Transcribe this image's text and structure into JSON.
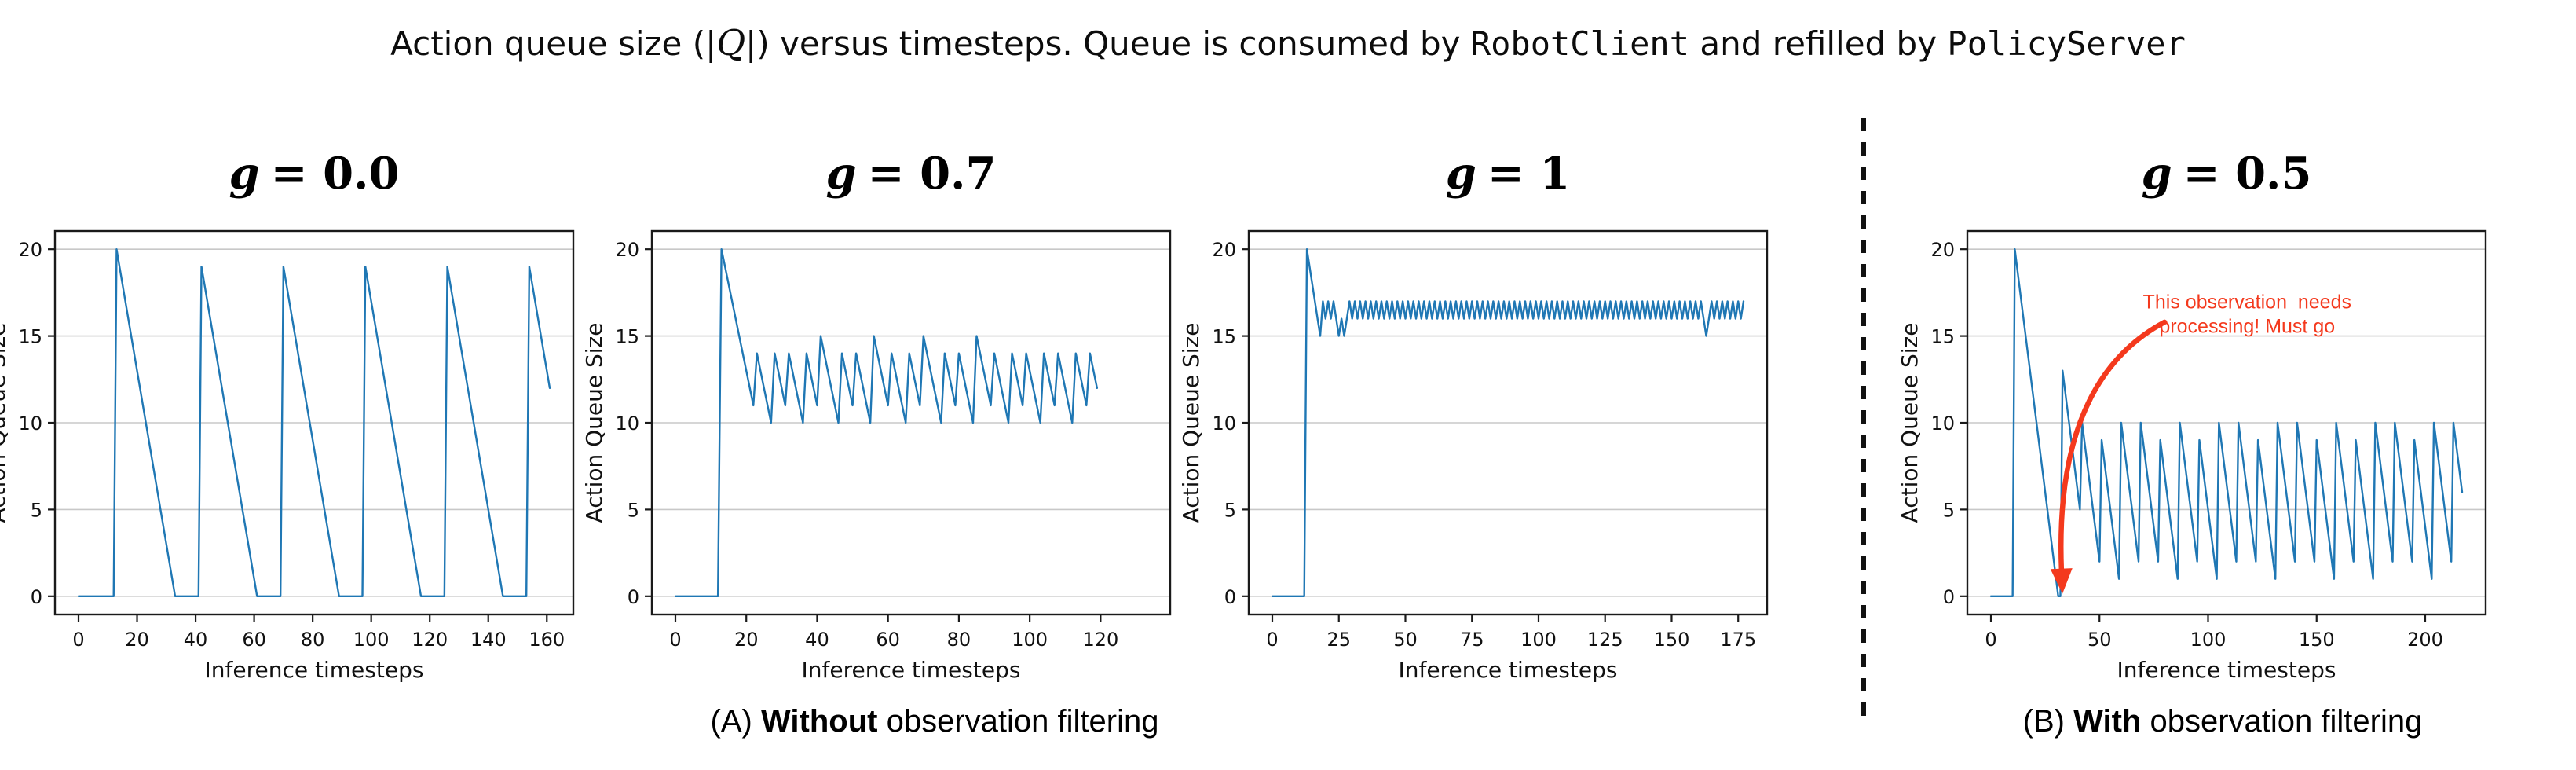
{
  "figure": {
    "title": {
      "part1": "Action queue size (|",
      "math_q": "Q",
      "part2": "|) versus timesteps. Queue is consumed by ",
      "code1": "RobotClient",
      "part3": " and refilled by ",
      "code2": "PolicyServer"
    },
    "captions": {
      "a": {
        "prefix": "(A)",
        "bold": "Without",
        "rest": "observation filtering"
      },
      "b": {
        "prefix": "(B)",
        "bold": "With",
        "rest": "observation filtering"
      }
    }
  },
  "style": {
    "line_color": "#1f77b4",
    "grid_color": "#c8c8c8",
    "spine_color": "#1a1a1a",
    "annotation_red": "#f4391d",
    "divider_color": "#111111"
  },
  "chart_data": [
    {
      "type": "line",
      "title_var": "g",
      "title_rest": "= 0.0",
      "xlabel": "Inference timesteps",
      "ylabel": "Action Queue Size",
      "xticks": [
        0,
        20,
        40,
        60,
        80,
        100,
        120,
        140,
        160
      ],
      "yticks": [
        0,
        5,
        10,
        15,
        20
      ],
      "xlim": [
        -8.05,
        169.05
      ],
      "ylim": [
        -1.05,
        21.05
      ],
      "grid": "horizontal",
      "legend": "none",
      "line_color": "#1f77b4",
      "x_start": 0,
      "values": [
        0,
        0,
        0,
        0,
        0,
        0,
        0,
        0,
        0,
        0,
        0,
        0,
        0,
        20,
        19,
        18,
        17,
        16,
        15,
        14,
        13,
        12,
        11,
        10,
        9,
        8,
        7,
        6,
        5,
        4,
        3,
        2,
        1,
        0,
        0,
        0,
        0,
        0,
        0,
        0,
        0,
        0,
        19,
        18,
        17,
        16,
        15,
        14,
        13,
        12,
        11,
        10,
        9,
        8,
        7,
        6,
        5,
        4,
        3,
        2,
        1,
        0,
        0,
        0,
        0,
        0,
        0,
        0,
        0,
        0,
        19,
        18,
        17,
        16,
        15,
        14,
        13,
        12,
        11,
        10,
        9,
        8,
        7,
        6,
        5,
        4,
        3,
        2,
        1,
        0,
        0,
        0,
        0,
        0,
        0,
        0,
        0,
        0,
        19,
        18,
        17,
        16,
        15,
        14,
        13,
        12,
        11,
        10,
        9,
        8,
        7,
        6,
        5,
        4,
        3,
        2,
        1,
        0,
        0,
        0,
        0,
        0,
        0,
        0,
        0,
        0,
        19,
        18,
        17,
        16,
        15,
        14,
        13,
        12,
        11,
        10,
        9,
        8,
        7,
        6,
        5,
        4,
        3,
        2,
        1,
        0,
        0,
        0,
        0,
        0,
        0,
        0,
        0,
        0,
        19,
        18,
        17,
        16,
        15,
        14,
        13,
        12
      ]
    },
    {
      "type": "line",
      "title_var": "g",
      "title_rest": "= 0.7",
      "xlabel": "Inference timesteps",
      "ylabel": "Action Queue Size",
      "xticks": [
        0,
        20,
        40,
        60,
        80,
        100,
        120
      ],
      "yticks": [
        0,
        5,
        10,
        15,
        20
      ],
      "xlim": [
        -6.65,
        139.65
      ],
      "ylim": [
        -1.05,
        21.05
      ],
      "grid": "horizontal",
      "legend": "none",
      "line_color": "#1f77b4",
      "x_start": 0,
      "values": [
        0,
        0,
        0,
        0,
        0,
        0,
        0,
        0,
        0,
        0,
        0,
        0,
        0,
        20,
        19,
        18,
        17,
        16,
        15,
        14,
        13,
        12,
        11,
        14,
        13,
        12,
        11,
        10,
        14,
        13,
        12,
        11,
        14,
        13,
        12,
        11,
        10,
        14,
        13,
        12,
        11,
        15,
        14,
        13,
        12,
        11,
        10,
        14,
        13,
        12,
        11,
        14,
        13,
        12,
        11,
        10,
        15,
        14,
        13,
        12,
        11,
        14,
        13,
        12,
        11,
        10,
        14,
        13,
        12,
        11,
        15,
        14,
        13,
        12,
        11,
        10,
        14,
        13,
        12,
        11,
        14,
        13,
        12,
        11,
        10,
        15,
        14,
        13,
        12,
        11,
        14,
        13,
        12,
        11,
        10,
        14,
        13,
        12,
        11,
        14,
        13,
        12,
        11,
        10,
        14,
        13,
        12,
        11,
        14,
        13,
        12,
        11,
        10,
        14,
        13,
        12,
        11,
        14,
        13,
        12
      ]
    },
    {
      "type": "line",
      "title_var": "g",
      "title_rest": "= 1",
      "xlabel": "Inference timesteps",
      "ylabel": "Action Queue Size",
      "xticks": [
        0,
        25,
        50,
        75,
        100,
        125,
        150,
        175
      ],
      "yticks": [
        0,
        5,
        10,
        15,
        20
      ],
      "xlim": [
        -8.85,
        185.85
      ],
      "ylim": [
        -1.05,
        21.05
      ],
      "grid": "horizontal",
      "legend": "none",
      "line_color": "#1f77b4",
      "x_start": 0,
      "values": [
        0,
        0,
        0,
        0,
        0,
        0,
        0,
        0,
        0,
        0,
        0,
        0,
        0,
        20,
        19,
        18,
        17,
        16,
        15,
        17,
        16,
        17,
        16,
        17,
        16,
        15,
        16,
        15,
        16,
        17,
        16,
        17,
        16,
        17,
        16,
        17,
        16,
        17,
        16,
        17,
        16,
        17,
        16,
        17,
        16,
        17,
        16,
        17,
        16,
        17,
        16,
        17,
        16,
        17,
        16,
        17,
        16,
        17,
        16,
        17,
        16,
        17,
        16,
        17,
        16,
        17,
        16,
        17,
        16,
        17,
        16,
        17,
        16,
        17,
        16,
        17,
        16,
        17,
        16,
        17,
        16,
        17,
        16,
        17,
        16,
        17,
        16,
        17,
        16,
        17,
        16,
        17,
        16,
        17,
        16,
        17,
        16,
        17,
        16,
        17,
        16,
        17,
        16,
        17,
        16,
        17,
        16,
        17,
        16,
        17,
        16,
        17,
        16,
        17,
        16,
        17,
        16,
        17,
        16,
        17,
        16,
        17,
        16,
        17,
        16,
        17,
        16,
        17,
        16,
        17,
        16,
        17,
        16,
        17,
        16,
        17,
        16,
        17,
        16,
        17,
        16,
        17,
        16,
        17,
        16,
        17,
        16,
        17,
        16,
        17,
        16,
        17,
        16,
        17,
        16,
        17,
        16,
        17,
        16,
        17,
        16,
        17,
        16,
        15,
        16,
        17,
        16,
        17,
        16,
        17,
        16,
        17,
        16,
        17,
        16,
        17,
        16,
        17
      ]
    },
    {
      "type": "line",
      "title_var": "g",
      "title_rest": "= 0.5",
      "xlabel": "Inference timesteps",
      "ylabel": "Action Queue Size",
      "xticks": [
        0,
        50,
        100,
        150,
        200
      ],
      "yticks": [
        0,
        5,
        10,
        15,
        20
      ],
      "xlim": [
        -10.85,
        227.85
      ],
      "ylim": [
        -1.05,
        21.05
      ],
      "grid": "horizontal",
      "legend": "none",
      "line_color": "#1f77b4",
      "x_start": 0,
      "values": [
        0,
        0,
        0,
        0,
        0,
        0,
        0,
        0,
        0,
        0,
        0,
        20,
        19,
        18,
        17,
        16,
        15,
        14,
        13,
        12,
        11,
        10,
        9,
        8,
        7,
        6,
        5,
        4,
        3,
        2,
        1,
        0,
        0,
        13,
        12,
        11,
        10,
        9,
        8,
        7,
        6,
        5,
        10,
        9,
        8,
        7,
        6,
        5,
        4,
        3,
        2,
        9,
        8,
        7,
        6,
        5,
        4,
        3,
        2,
        1,
        10,
        9,
        8,
        7,
        6,
        5,
        4,
        3,
        2,
        10,
        9,
        8,
        7,
        6,
        5,
        4,
        3,
        2,
        9,
        8,
        7,
        6,
        5,
        4,
        3,
        2,
        1,
        10,
        9,
        8,
        7,
        6,
        5,
        4,
        3,
        2,
        9,
        8,
        7,
        6,
        5,
        4,
        3,
        2,
        1,
        10,
        9,
        8,
        7,
        6,
        5,
        4,
        3,
        2,
        10,
        9,
        8,
        7,
        6,
        5,
        4,
        3,
        2,
        9,
        8,
        7,
        6,
        5,
        4,
        3,
        2,
        1,
        10,
        9,
        8,
        7,
        6,
        5,
        4,
        3,
        2,
        10,
        9,
        8,
        7,
        6,
        5,
        4,
        3,
        2,
        9,
        8,
        7,
        6,
        5,
        4,
        3,
        2,
        1,
        10,
        9,
        8,
        7,
        6,
        5,
        4,
        3,
        2,
        9,
        8,
        7,
        6,
        5,
        4,
        3,
        2,
        1,
        10,
        9,
        8,
        7,
        6,
        5,
        4,
        3,
        2,
        10,
        9,
        8,
        7,
        6,
        5,
        4,
        3,
        2,
        9,
        8,
        7,
        6,
        5,
        4,
        3,
        2,
        1,
        10,
        9,
        8,
        7,
        6,
        5,
        4,
        3,
        2,
        10,
        9,
        8,
        7,
        6
      ],
      "annotation": {
        "lines": [
          "This observation  needs",
          "processing! Must go"
        ],
        "color": "#f4391d",
        "text_pos": [
          118,
          16.6
        ],
        "line_height_px": 31,
        "font_px": 25,
        "arrow": {
          "start": [
            80,
            15.8
          ],
          "control": [
            29,
            12.4
          ],
          "end": [
            32.5,
            1.5
          ]
        }
      }
    }
  ]
}
